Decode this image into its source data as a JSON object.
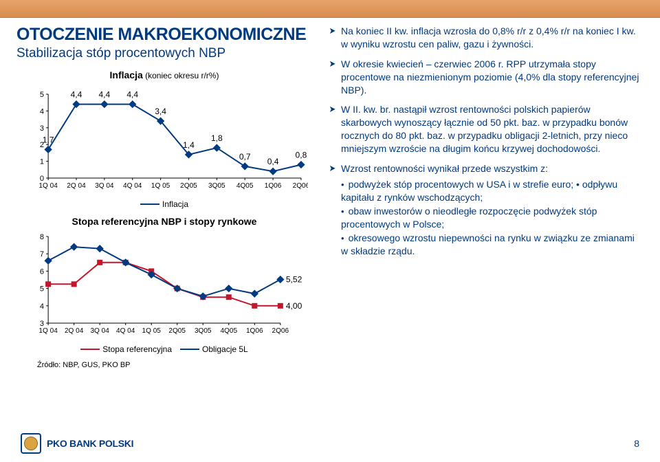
{
  "header": {
    "title": "OTOCZENIE MAKROEKONOMICZNE",
    "subtitle": "Stabilizacja stóp procentowych NBP"
  },
  "chart1": {
    "type": "line",
    "title_pre": "Inflacja",
    "title_note": " (koniec okresu r/r%)",
    "legend_label": "Inflacja",
    "series_color": "#003a81",
    "marker": "diamond",
    "background": "#ffffff",
    "categories": [
      "1Q 04",
      "2Q 04",
      "3Q 04",
      "4Q 04",
      "1Q 05",
      "2Q05",
      "3Q05",
      "4Q05",
      "1Q06",
      "2Q06"
    ],
    "values": [
      1.7,
      4.4,
      4.4,
      4.4,
      3.4,
      1.4,
      1.8,
      0.7,
      0.4,
      0.8
    ],
    "labels": [
      "1,7",
      "4,4",
      "4,4",
      "4,4",
      "3,4",
      "1,4",
      "1,8",
      "0,7",
      "0,4",
      "0,8"
    ],
    "ylim": [
      0,
      5
    ],
    "yticks": [
      0,
      1,
      2,
      3,
      4,
      5
    ],
    "tick_font_size": 11,
    "label_font_size": 12,
    "axis_color": "#000000",
    "line_width": 2
  },
  "chart2_title": "Stopa referencyjna NBP i stopy rynkowe",
  "chart2": {
    "type": "line",
    "background": "#ffffff",
    "categories": [
      "1Q 04",
      "2Q 04",
      "3Q 04",
      "4Q 04",
      "1Q 05",
      "2Q05",
      "3Q05",
      "4Q05",
      "1Q06",
      "2Q06"
    ],
    "ylim": [
      3,
      8
    ],
    "yticks": [
      3,
      4,
      5,
      6,
      7,
      8
    ],
    "tick_font_size": 11,
    "label_font_size": 12,
    "axis_color": "#000000",
    "line_width": 2,
    "series": [
      {
        "name": "Stopa referencyjna",
        "color": "#c4162a",
        "marker": "square",
        "values": [
          5.25,
          5.25,
          6.5,
          6.5,
          6.0,
          5.0,
          4.5,
          4.5,
          4.0,
          4.0
        ],
        "end_label": "4,00"
      },
      {
        "name": "Obligacje 5L",
        "color": "#003a81",
        "marker": "diamond",
        "values": [
          6.6,
          7.4,
          7.3,
          6.5,
          5.8,
          5.0,
          4.55,
          5.0,
          4.7,
          5.52
        ],
        "end_label": "5,52"
      }
    ]
  },
  "source": "Źródło: NBP, GUS, PKO BP",
  "bullets": [
    "Na koniec II kw. inflacja wzrosła do 0,8% r/r z 0,4% r/r na koniec I kw. w wyniku wzrostu cen paliw, gazu i żywności.",
    "W okresie kwiecień – czerwiec 2006 r. RPP utrzymała stopy procentowe na niezmienionym poziomie (4,0% dla stopy referencyjnej NBP).",
    "W II. kw. br. nastąpił wzrost rentowności polskich papierów skarbowych wynoszący łącznie od 50 pkt. baz. w przypadku bonów rocznych do 80 pkt. baz. w przypadku obligacji 2-letnich, przy nieco mniejszym wzroście na długim końcu krzywej dochodowości."
  ],
  "bullet4_lead": "Wzrost rentowności wynikał przede wszystkim z:",
  "sub_bullets": [
    "podwyżek stóp procentowych w USA i w strefie euro; • odpływu kapitału z rynków wschodzących;",
    "obaw inwestorów o nieodległe rozpoczęcie podwyżek stóp procentowych w Polsce;",
    "okresowego wzrostu niepewności na rynku w związku ze zmianami w składzie rządu."
  ],
  "footer": {
    "logo_text": "PKO BANK POLSKI",
    "page": "8"
  }
}
